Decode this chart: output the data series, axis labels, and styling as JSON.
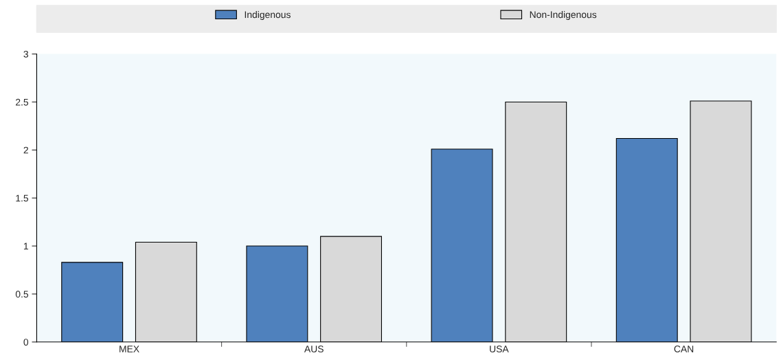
{
  "chart_data": {
    "type": "bar",
    "categories": [
      "MEX",
      "AUS",
      "USA",
      "CAN"
    ],
    "series": [
      {
        "name": "Indigenous",
        "color": "#4f81bd",
        "values": [
          0.83,
          1.0,
          2.01,
          2.12
        ]
      },
      {
        "name": "Non-Indigenous",
        "color": "#d9d9d9",
        "values": [
          1.04,
          1.1,
          2.5,
          2.51
        ]
      }
    ],
    "ylim": [
      0,
      3
    ],
    "yticks": [
      0,
      0.5,
      1,
      1.5,
      2,
      2.5,
      3
    ],
    "grid": false,
    "legend": "top"
  }
}
